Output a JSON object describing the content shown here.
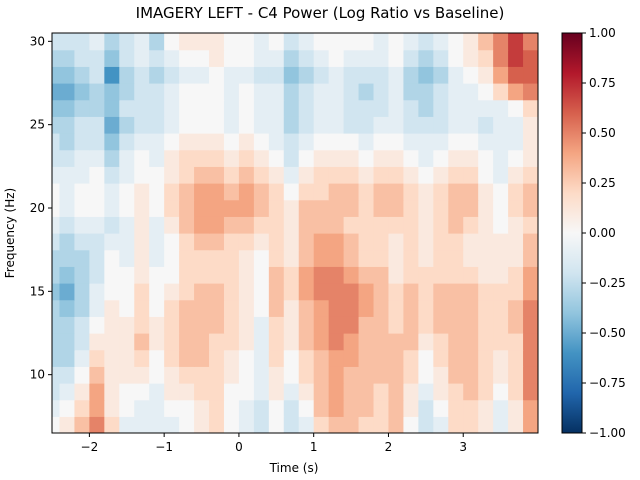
{
  "chart_data": {
    "type": "heatmap",
    "title": "IMAGERY LEFT - C4 Power (Log Ratio vs Baseline)",
    "xlabel": "Time (s)",
    "ylabel": "Frequency (Hz)",
    "xlim": [
      -2.5,
      4.0
    ],
    "ylim": [
      6.5,
      30.5
    ],
    "x_ticks": [
      -2,
      -1,
      0,
      1,
      2,
      3
    ],
    "x_tick_labels": [
      "−2",
      "−1",
      "0",
      "1",
      "2",
      "3"
    ],
    "y_ticks": [
      10,
      15,
      20,
      25,
      30
    ],
    "y_tick_labels": [
      "10",
      "15",
      "20",
      "25",
      "30"
    ],
    "colorbar": {
      "cmap": "RdBu_r",
      "vmin": -1.0,
      "vmax": 1.0,
      "ticks": [
        1.0,
        0.75,
        0.5,
        0.25,
        0.0,
        -0.25,
        -0.5,
        -0.75,
        -1.0
      ],
      "tick_labels": [
        "1.00",
        "0.75",
        "0.50",
        "0.25",
        "0.00",
        "−0.25",
        "−0.50",
        "−0.75",
        "−1.00"
      ]
    },
    "frequencies": [
      7,
      8,
      9,
      10,
      11,
      12,
      13,
      14,
      15,
      16,
      17,
      18,
      19,
      20,
      21,
      22,
      23,
      24,
      25,
      26,
      27,
      28,
      29,
      30
    ],
    "times": [
      -2.5,
      -2.3,
      -2.1,
      -1.9,
      -1.7,
      -1.5,
      -1.3,
      -1.1,
      -0.9,
      -0.7,
      -0.5,
      -0.3,
      -0.1,
      0.1,
      0.3,
      0.5,
      0.7,
      0.9,
      1.1,
      1.3,
      1.5,
      1.7,
      1.9,
      2.1,
      2.3,
      2.5,
      2.7,
      2.9,
      3.1,
      3.3,
      3.5,
      3.7,
      3.9
    ],
    "values": [
      [
        0.0,
        0.1,
        0.3,
        0.5,
        0.2,
        -0.1,
        -0.1,
        -0.1,
        -0.1,
        0.0,
        0.1,
        0.2,
        0.0,
        -0.1,
        -0.2,
        0.0,
        -0.2,
        -0.1,
        0.2,
        0.3,
        0.3,
        0.2,
        0.2,
        0.3,
        0.0,
        -0.2,
        -0.1,
        0.2,
        0.2,
        0.1,
        -0.1,
        0.1,
        0.4
      ],
      [
        -0.1,
        0.0,
        0.2,
        0.4,
        0.1,
        0.0,
        -0.1,
        -0.1,
        0.0,
        0.0,
        0.1,
        0.2,
        0.0,
        -0.1,
        -0.2,
        0.0,
        -0.2,
        0.0,
        0.3,
        0.4,
        0.3,
        0.3,
        0.2,
        0.3,
        0.1,
        -0.2,
        0.0,
        0.2,
        0.2,
        0.1,
        -0.1,
        0.1,
        0.4
      ],
      [
        -0.2,
        -0.1,
        0.1,
        0.4,
        0.1,
        0.0,
        0.0,
        -0.1,
        0.1,
        0.1,
        0.2,
        0.2,
        0.0,
        0.0,
        -0.1,
        0.1,
        -0.1,
        0.1,
        0.3,
        0.4,
        0.3,
        0.3,
        0.2,
        0.3,
        0.1,
        -0.1,
        0.1,
        0.2,
        0.3,
        0.2,
        0.0,
        0.2,
        0.5
      ],
      [
        -0.2,
        -0.2,
        0.0,
        0.3,
        0.1,
        0.1,
        0.1,
        0.0,
        0.1,
        0.2,
        0.2,
        0.2,
        0.1,
        0.0,
        -0.1,
        0.1,
        0.0,
        0.2,
        0.3,
        0.4,
        0.3,
        0.3,
        0.3,
        0.3,
        0.2,
        0.0,
        0.1,
        0.3,
        0.3,
        0.2,
        0.1,
        0.2,
        0.5
      ],
      [
        -0.3,
        -0.3,
        -0.1,
        0.2,
        0.1,
        0.1,
        0.2,
        0.0,
        0.2,
        0.3,
        0.3,
        0.2,
        0.1,
        0.0,
        -0.1,
        0.2,
        0.0,
        0.2,
        0.3,
        0.4,
        0.4,
        0.3,
        0.3,
        0.3,
        0.2,
        0.0,
        0.2,
        0.3,
        0.3,
        0.2,
        0.1,
        0.2,
        0.5
      ],
      [
        -0.3,
        -0.3,
        -0.2,
        0.1,
        0.1,
        0.1,
        0.3,
        0.1,
        0.2,
        0.3,
        0.3,
        0.2,
        0.2,
        0.1,
        -0.1,
        0.2,
        0.1,
        0.3,
        0.4,
        0.5,
        0.4,
        0.3,
        0.3,
        0.3,
        0.3,
        0.1,
        0.2,
        0.3,
        0.3,
        0.2,
        0.2,
        0.2,
        0.5
      ],
      [
        -0.3,
        -0.3,
        -0.2,
        0.0,
        0.1,
        0.1,
        0.2,
        0.1,
        0.2,
        0.3,
        0.3,
        0.3,
        0.2,
        0.1,
        -0.1,
        0.2,
        0.1,
        0.3,
        0.4,
        0.5,
        0.5,
        0.3,
        0.3,
        0.2,
        0.3,
        0.2,
        0.3,
        0.3,
        0.3,
        0.2,
        0.2,
        0.3,
        0.5
      ],
      [
        -0.3,
        -0.4,
        -0.3,
        -0.1,
        0.1,
        0.0,
        0.2,
        0.0,
        0.2,
        0.3,
        0.3,
        0.3,
        0.2,
        0.1,
        0.0,
        0.3,
        0.1,
        0.3,
        0.4,
        0.5,
        0.5,
        0.4,
        0.3,
        0.2,
        0.3,
        0.2,
        0.3,
        0.3,
        0.3,
        0.2,
        0.2,
        0.3,
        0.5
      ],
      [
        -0.4,
        -0.5,
        -0.3,
        -0.1,
        0.0,
        0.0,
        0.2,
        0.0,
        0.1,
        0.2,
        0.3,
        0.3,
        0.2,
        0.1,
        0.0,
        0.3,
        0.2,
        0.4,
        0.5,
        0.5,
        0.5,
        0.4,
        0.3,
        0.2,
        0.3,
        0.2,
        0.3,
        0.3,
        0.3,
        0.2,
        0.2,
        0.2,
        0.4
      ],
      [
        -0.3,
        -0.4,
        -0.3,
        -0.2,
        0.0,
        0.0,
        0.1,
        0.0,
        0.0,
        0.2,
        0.2,
        0.2,
        0.2,
        0.1,
        0.0,
        0.3,
        0.2,
        0.4,
        0.5,
        0.5,
        0.4,
        0.3,
        0.3,
        0.1,
        0.2,
        0.2,
        0.2,
        0.2,
        0.2,
        0.1,
        0.1,
        0.2,
        0.4
      ],
      [
        -0.3,
        -0.3,
        -0.3,
        -0.2,
        0.0,
        -0.1,
        0.1,
        -0.1,
        0.0,
        0.2,
        0.2,
        0.2,
        0.2,
        0.1,
        0.0,
        0.2,
        0.1,
        0.3,
        0.4,
        0.4,
        0.3,
        0.2,
        0.2,
        0.1,
        0.2,
        0.1,
        0.2,
        0.2,
        0.1,
        0.1,
        0.1,
        0.1,
        0.3
      ],
      [
        -0.2,
        -0.3,
        -0.2,
        -0.2,
        -0.1,
        -0.1,
        0.1,
        -0.1,
        0.0,
        0.2,
        0.3,
        0.3,
        0.2,
        0.2,
        0.1,
        0.2,
        0.1,
        0.3,
        0.4,
        0.4,
        0.3,
        0.2,
        0.2,
        0.1,
        0.2,
        0.1,
        0.2,
        0.2,
        0.1,
        0.1,
        0.1,
        0.1,
        0.3
      ],
      [
        -0.1,
        -0.2,
        -0.1,
        -0.1,
        -0.2,
        -0.1,
        0.1,
        -0.1,
        0.1,
        0.3,
        0.4,
        0.4,
        0.3,
        0.3,
        0.2,
        0.2,
        0.1,
        0.3,
        0.3,
        0.3,
        0.2,
        0.2,
        0.2,
        0.2,
        0.2,
        0.1,
        0.2,
        0.3,
        0.2,
        0.1,
        0.0,
        0.1,
        0.2
      ],
      [
        0.0,
        -0.1,
        0.0,
        0.0,
        -0.1,
        0.0,
        0.1,
        0.0,
        0.2,
        0.3,
        0.4,
        0.4,
        0.4,
        0.4,
        0.3,
        0.2,
        0.1,
        0.3,
        0.3,
        0.3,
        0.3,
        0.2,
        0.3,
        0.3,
        0.2,
        0.1,
        0.2,
        0.3,
        0.3,
        0.1,
        0.0,
        0.2,
        0.3
      ],
      [
        0.0,
        -0.1,
        0.0,
        0.0,
        -0.1,
        0.0,
        0.1,
        0.0,
        0.2,
        0.3,
        0.4,
        0.4,
        0.3,
        0.4,
        0.3,
        0.2,
        0.0,
        0.2,
        0.2,
        0.3,
        0.3,
        0.2,
        0.3,
        0.3,
        0.2,
        0.1,
        0.2,
        0.3,
        0.3,
        0.1,
        0.0,
        0.2,
        0.3
      ],
      [
        -0.1,
        -0.1,
        -0.1,
        0.0,
        -0.2,
        -0.1,
        0.0,
        0.0,
        0.1,
        0.2,
        0.3,
        0.3,
        0.2,
        0.3,
        0.2,
        0.1,
        -0.1,
        0.1,
        0.2,
        0.2,
        0.2,
        0.1,
        0.2,
        0.2,
        0.1,
        0.0,
        0.1,
        0.2,
        0.2,
        0.0,
        -0.1,
        0.1,
        0.2
      ],
      [
        -0.2,
        -0.2,
        -0.1,
        -0.1,
        -0.3,
        -0.1,
        0.0,
        -0.1,
        0.1,
        0.2,
        0.2,
        0.2,
        0.1,
        0.2,
        0.1,
        0.0,
        -0.2,
        0.0,
        0.1,
        0.1,
        0.1,
        0.0,
        0.1,
        0.1,
        0.0,
        -0.1,
        0.0,
        0.1,
        0.1,
        0.0,
        -0.1,
        0.0,
        0.1
      ],
      [
        -0.2,
        -0.3,
        -0.2,
        -0.2,
        -0.4,
        -0.2,
        -0.1,
        -0.1,
        0.0,
        0.1,
        0.1,
        0.1,
        0.0,
        0.1,
        0.0,
        -0.1,
        -0.2,
        -0.1,
        0.0,
        0.0,
        0.0,
        -0.1,
        0.0,
        0.0,
        -0.1,
        -0.1,
        -0.1,
        0.0,
        0.0,
        -0.1,
        -0.1,
        -0.1,
        0.1
      ],
      [
        -0.3,
        -0.3,
        -0.2,
        -0.2,
        -0.5,
        -0.3,
        -0.2,
        -0.2,
        -0.1,
        0.0,
        0.0,
        0.0,
        -0.1,
        0.0,
        -0.1,
        -0.1,
        -0.3,
        -0.2,
        -0.1,
        -0.1,
        -0.2,
        -0.2,
        -0.1,
        -0.1,
        -0.2,
        -0.2,
        -0.2,
        -0.1,
        -0.1,
        -0.2,
        -0.1,
        -0.1,
        0.1
      ],
      [
        -0.4,
        -0.4,
        -0.3,
        -0.3,
        -0.4,
        -0.2,
        -0.2,
        -0.2,
        -0.1,
        0.0,
        0.0,
        0.0,
        -0.1,
        0.0,
        -0.1,
        -0.1,
        -0.3,
        -0.2,
        -0.1,
        -0.1,
        -0.2,
        -0.2,
        -0.2,
        -0.1,
        -0.2,
        -0.3,
        -0.2,
        -0.1,
        -0.1,
        -0.1,
        -0.1,
        0.0,
        0.2
      ],
      [
        -0.5,
        -0.5,
        -0.4,
        -0.3,
        -0.4,
        -0.3,
        -0.2,
        -0.2,
        -0.1,
        0.0,
        0.0,
        0.0,
        -0.1,
        0.0,
        -0.1,
        -0.1,
        -0.3,
        -0.2,
        -0.1,
        -0.1,
        -0.2,
        -0.3,
        -0.2,
        -0.1,
        -0.3,
        -0.3,
        -0.2,
        -0.1,
        -0.1,
        0.0,
        0.2,
        0.4,
        0.5
      ],
      [
        -0.4,
        -0.4,
        -0.3,
        -0.2,
        -0.6,
        -0.3,
        -0.2,
        -0.3,
        -0.2,
        -0.1,
        -0.1,
        0.0,
        -0.1,
        -0.1,
        -0.2,
        -0.2,
        -0.4,
        -0.3,
        -0.2,
        -0.1,
        -0.2,
        -0.2,
        -0.2,
        -0.1,
        -0.3,
        -0.4,
        -0.3,
        -0.1,
        0.0,
        0.1,
        0.4,
        0.6,
        0.6
      ],
      [
        -0.3,
        -0.3,
        -0.2,
        -0.2,
        -0.4,
        -0.2,
        -0.1,
        -0.2,
        -0.1,
        0.0,
        0.0,
        0.1,
        0.0,
        0.0,
        -0.1,
        -0.1,
        -0.3,
        -0.2,
        -0.1,
        0.0,
        -0.1,
        -0.1,
        -0.1,
        0.0,
        -0.2,
        -0.3,
        -0.2,
        0.0,
        0.1,
        0.2,
        0.5,
        0.7,
        0.6
      ],
      [
        -0.2,
        -0.2,
        -0.2,
        -0.1,
        -0.3,
        -0.2,
        -0.1,
        -0.3,
        0.0,
        0.1,
        0.1,
        0.1,
        0.0,
        0.0,
        -0.1,
        0.0,
        -0.2,
        -0.1,
        0.0,
        0.0,
        0.0,
        0.0,
        -0.1,
        0.0,
        -0.1,
        -0.2,
        -0.1,
        0.0,
        0.1,
        0.3,
        0.5,
        0.7,
        0.5
      ]
    ]
  }
}
